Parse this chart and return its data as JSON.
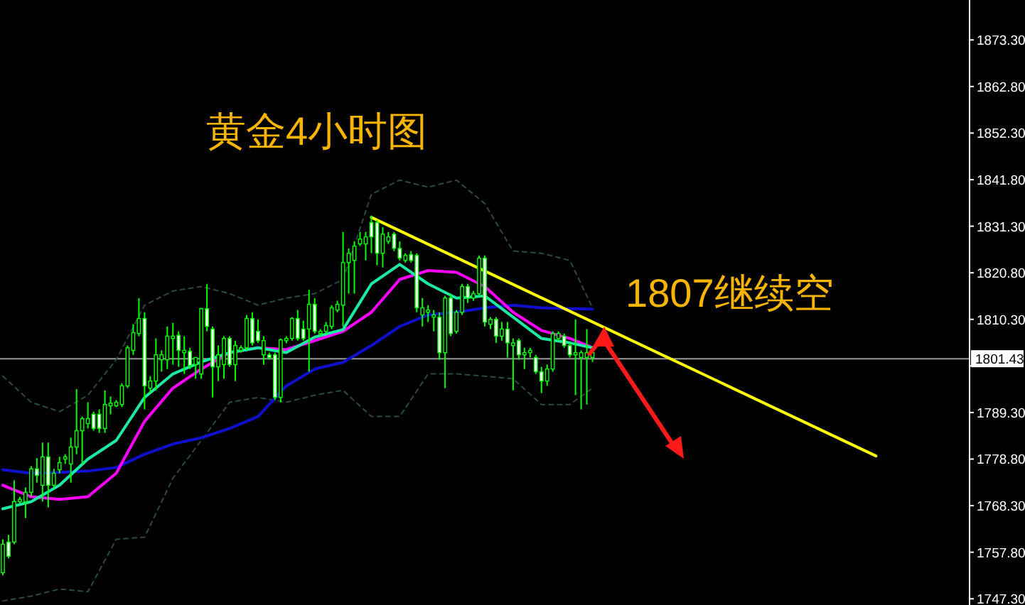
{
  "chart_data": {
    "type": "candlestick",
    "title": "黄金4小时图",
    "annotations": [
      "1807继续空"
    ],
    "categories": [
      null,
      null,
      null,
      null,
      null,
      null,
      null,
      null,
      null,
      null,
      null,
      null,
      null,
      null,
      null,
      null,
      null,
      null,
      null,
      null,
      null,
      null,
      null,
      null,
      null,
      null,
      null,
      null,
      null,
      null,
      null,
      null,
      null,
      null,
      null,
      null,
      null,
      null,
      null,
      null,
      null,
      null,
      null,
      null,
      null,
      null,
      null,
      null,
      null,
      null,
      null,
      null,
      null,
      null,
      null,
      null,
      null,
      null,
      null,
      null,
      null,
      null,
      null,
      null,
      null,
      null,
      null,
      null,
      null,
      null,
      null,
      null,
      null,
      null,
      null,
      null,
      null,
      null,
      null,
      null,
      null,
      null,
      null,
      null,
      null,
      null,
      null,
      null,
      null,
      null,
      null,
      null,
      null,
      null,
      null,
      null,
      null,
      null,
      null,
      null,
      null,
      null,
      null,
      null,
      null,
      null,
      null,
      null,
      null,
      null,
      null,
      null,
      null,
      null,
      null,
      null,
      null,
      null,
      null,
      null,
      null,
      null,
      null,
      null,
      null,
      null,
      null,
      null,
      null,
      null,
      null,
      null,
      null,
      null,
      null,
      null,
      null,
      null,
      null,
      null,
      null,
      null,
      null,
      null,
      null,
      null,
      null,
      null,
      null,
      null,
      null,
      null,
      null,
      null,
      null,
      null,
      null,
      null,
      null,
      null,
      null,
      null,
      null,
      null,
      null,
      null,
      null,
      null,
      null,
      null,
      null
    ],
    "ohlc": [
      [
        1753.2,
        1760.7,
        1752.6,
        1759.6
      ],
      [
        1760.1,
        1761.7,
        1756.4,
        1756.9
      ],
      [
        1760.1,
        1774.0,
        1759.6,
        1769.2
      ],
      [
        1769.2,
        1770.3,
        1768.7,
        1769.7
      ],
      [
        1769.2,
        1772.4,
        1765.5,
        1771.3
      ],
      [
        1771.3,
        1777.2,
        1770.3,
        1776.6
      ],
      [
        1776.6,
        1779.0,
        1773.5,
        1775.1
      ],
      [
        1772.9,
        1782.5,
        1769.2,
        1779.3
      ],
      [
        1779.3,
        1782.5,
        1767.9,
        1772.9
      ],
      [
        1772.9,
        1776.6,
        1772.4,
        1775.6
      ],
      [
        1776.4,
        1779.3,
        1775.6,
        1778.0
      ],
      [
        1778.8,
        1779.9,
        1777.7,
        1779.3
      ],
      [
        1777.7,
        1783.6,
        1773.5,
        1781.5
      ],
      [
        1781.5,
        1794.6,
        1779.9,
        1785.2
      ],
      [
        1785.2,
        1788.4,
        1777.7,
        1787.9
      ],
      [
        1786.8,
        1791.6,
        1785.7,
        1787.9
      ],
      [
        1788.9,
        1789.5,
        1785.2,
        1785.7
      ],
      [
        1788.9,
        1790.0,
        1784.7,
        1785.7
      ],
      [
        1785.7,
        1794.3,
        1784.7,
        1791.1
      ],
      [
        1790.8,
        1792.9,
        1788.9,
        1791.4
      ],
      [
        1790.8,
        1792.1,
        1790.5,
        1791.6
      ],
      [
        1791.1,
        1795.9,
        1790.5,
        1795.3
      ],
      [
        1795.3,
        1804.4,
        1794.8,
        1803.9
      ],
      [
        1803.3,
        1809.2,
        1802.3,
        1807.3
      ],
      [
        1807.1,
        1815.1,
        1806.5,
        1810.5
      ],
      [
        1810.5,
        1811.9,
        1790.0,
        1795.3
      ],
      [
        1794.8,
        1797.5,
        1793.7,
        1796.4
      ],
      [
        1796.4,
        1806.0,
        1794.3,
        1802.3
      ],
      [
        1801.2,
        1803.3,
        1798.5,
        1802.3
      ],
      [
        1801.2,
        1808.7,
        1799.1,
        1806.5
      ],
      [
        1806.0,
        1809.5,
        1800.1,
        1806.5
      ],
      [
        1806.7,
        1807.6,
        1799.6,
        1803.3
      ],
      [
        1802.8,
        1806.5,
        1798.0,
        1803.3
      ],
      [
        1803.1,
        1803.9,
        1799.1,
        1799.9
      ],
      [
        1800.1,
        1801.7,
        1796.9,
        1801.7
      ],
      [
        1798.0,
        1812.9,
        1796.9,
        1812.7
      ],
      [
        1812.7,
        1818.3,
        1807.6,
        1808.7
      ],
      [
        1808.1,
        1808.7,
        1792.7,
        1799.6
      ],
      [
        1799.6,
        1804.4,
        1796.4,
        1802.3
      ],
      [
        1800.1,
        1806.5,
        1796.9,
        1806.0
      ],
      [
        1806.0,
        1806.5,
        1799.6,
        1800.1
      ],
      [
        1800.1,
        1805.5,
        1796.4,
        1804.4
      ],
      [
        1803.3,
        1804.4,
        1802.8,
        1803.9
      ],
      [
        1803.9,
        1811.3,
        1803.3,
        1810.5
      ],
      [
        1810.5,
        1811.9,
        1804.4,
        1805.0
      ],
      [
        1807.6,
        1810.3,
        1805.0,
        1805.5
      ],
      [
        1802.3,
        1806.5,
        1800.1,
        1805.5
      ],
      [
        1802.3,
        1802.8,
        1801.2,
        1801.7
      ],
      [
        1802.3,
        1802.8,
        1792.1,
        1792.7
      ],
      [
        1792.7,
        1806.0,
        1791.6,
        1805.7
      ],
      [
        1805.5,
        1806.5,
        1804.9,
        1806.0
      ],
      [
        1806.0,
        1810.8,
        1805.5,
        1810.5
      ],
      [
        1810.5,
        1812.4,
        1805.5,
        1806.0
      ],
      [
        1808.1,
        1810.0,
        1805.5,
        1806.0
      ],
      [
        1808.1,
        1817.0,
        1798.5,
        1813.7
      ],
      [
        1813.7,
        1815.1,
        1807.1,
        1807.6
      ],
      [
        1807.1,
        1808.1,
        1806.5,
        1807.6
      ],
      [
        1807.6,
        1809.7,
        1807.1,
        1808.9
      ],
      [
        1808.7,
        1813.5,
        1808.1,
        1812.9
      ],
      [
        1812.4,
        1814.5,
        1811.9,
        1813.7
      ],
      [
        1813.5,
        1830.0,
        1808.7,
        1823.1
      ],
      [
        1823.1,
        1826.3,
        1816.1,
        1825.2
      ],
      [
        1823.6,
        1827.9,
        1816.1,
        1826.8
      ],
      [
        1827.3,
        1830.0,
        1826.8,
        1828.4
      ],
      [
        1827.3,
        1830.0,
        1823.6,
        1828.9
      ],
      [
        1832.1,
        1833.7,
        1825.2,
        1828.9
      ],
      [
        1832.1,
        1832.7,
        1822.5,
        1825.2
      ],
      [
        1825.2,
        1831.1,
        1822.0,
        1829.5
      ],
      [
        1827.9,
        1830.0,
        1827.3,
        1828.9
      ],
      [
        1829.5,
        1830.0,
        1825.7,
        1826.3
      ],
      [
        1826.3,
        1827.9,
        1823.6,
        1824.1
      ],
      [
        1823.6,
        1825.2,
        1823.1,
        1824.7
      ],
      [
        1824.9,
        1825.7,
        1823.1,
        1823.6
      ],
      [
        1824.7,
        1825.2,
        1811.9,
        1812.9
      ],
      [
        1811.3,
        1815.1,
        1808.7,
        1812.9
      ],
      [
        1811.9,
        1813.5,
        1809.7,
        1812.4
      ],
      [
        1810.8,
        1812.4,
        1807.6,
        1811.3
      ],
      [
        1810.8,
        1811.9,
        1801.2,
        1802.8
      ],
      [
        1802.8,
        1815.6,
        1794.8,
        1815.1
      ],
      [
        1815.1,
        1816.1,
        1806.5,
        1807.1
      ],
      [
        1807.6,
        1812.4,
        1807.1,
        1811.9
      ],
      [
        1811.9,
        1818.3,
        1811.3,
        1817.7
      ],
      [
        1817.7,
        1818.3,
        1814.0,
        1815.1
      ],
      [
        1815.1,
        1816.7,
        1814.5,
        1816.1
      ],
      [
        1816.1,
        1824.7,
        1815.6,
        1824.1
      ],
      [
        1824.1,
        1824.7,
        1808.7,
        1809.7
      ],
      [
        1809.2,
        1810.8,
        1808.1,
        1810.3
      ],
      [
        1810.3,
        1810.8,
        1805.0,
        1806.5
      ],
      [
        1806.5,
        1809.7,
        1805.5,
        1808.1
      ],
      [
        1808.1,
        1809.7,
        1801.7,
        1805.0
      ],
      [
        1804.4,
        1806.0,
        1794.3,
        1805.0
      ],
      [
        1805.5,
        1806.0,
        1801.2,
        1802.3
      ],
      [
        1802.3,
        1803.9,
        1799.1,
        1802.8
      ],
      [
        1802.8,
        1803.9,
        1801.7,
        1803.3
      ],
      [
        1801.7,
        1802.3,
        1798.0,
        1798.5
      ],
      [
        1798.5,
        1799.6,
        1793.7,
        1796.4
      ],
      [
        1796.4,
        1800.1,
        1795.3,
        1799.1
      ],
      [
        1799.1,
        1807.6,
        1798.5,
        1807.1
      ],
      [
        1806.0,
        1807.6,
        1805.5,
        1807.1
      ],
      [
        1806.5,
        1807.1,
        1803.9,
        1804.4
      ],
      [
        1804.4,
        1805.0,
        1801.7,
        1802.3
      ],
      [
        1802.3,
        1810.3,
        1793.2,
        1802.8
      ],
      [
        1801.7,
        1803.3,
        1790.0,
        1802.8
      ],
      [
        1801.7,
        1808.1,
        1791.1,
        1802.8
      ],
      [
        1801.7,
        1803.9,
        1800.7,
        1802.8
      ],
      null,
      null,
      null,
      null,
      null,
      null,
      null,
      null,
      null,
      null,
      null,
      null,
      null,
      null,
      null,
      null,
      null,
      null,
      null,
      null,
      null,
      null,
      null,
      null,
      null,
      null,
      null,
      null,
      null,
      null,
      null,
      null,
      null,
      null,
      null,
      null,
      null,
      null,
      null,
      null,
      null,
      null,
      null,
      null,
      null,
      null,
      null,
      null,
      null,
      null,
      null,
      null,
      null,
      null,
      null,
      null,
      null,
      null,
      null,
      null,
      null,
      null,
      null,
      null,
      null,
      null
    ],
    "series": [
      {
        "type": "line",
        "color": "#2a4a44",
        "line_style": "dashed",
        "values": [
          1797.5,
          null,
          null,
          null,
          null,
          1791.6,
          null,
          null,
          null,
          null,
          1789.5,
          null,
          null,
          null,
          null,
          1793.2,
          null,
          null,
          null,
          null,
          1801.2,
          null,
          null,
          null,
          null,
          1813.5,
          null,
          null,
          null,
          null,
          1816.7,
          null,
          null,
          null,
          null,
          1817.7,
          null,
          null,
          null,
          null,
          1816.1,
          null,
          null,
          null,
          null,
          1813.5,
          null,
          null,
          null,
          null,
          1815.1,
          null,
          null,
          null,
          null,
          1816.1,
          null,
          null,
          null,
          null,
          1819.3,
          null,
          null,
          null,
          null,
          1838.5,
          null,
          null,
          null,
          null,
          1841.7,
          null,
          null,
          null,
          null,
          1840.1,
          null,
          null,
          null,
          null,
          1841.7,
          null,
          null,
          null,
          null,
          1836.4,
          null,
          null,
          null,
          null,
          1825.7,
          null,
          null,
          null,
          null,
          1825.2,
          null,
          null,
          null,
          null,
          1823.6,
          null,
          null,
          null,
          1812.9,
          null,
          null,
          null,
          null,
          null,
          null,
          null,
          null,
          null,
          null,
          null,
          null,
          null,
          null,
          null,
          null,
          null,
          null,
          null,
          null,
          null,
          null,
          null,
          null,
          null,
          null,
          null,
          null,
          null,
          null,
          null,
          null,
          null,
          null,
          null,
          null,
          null,
          null,
          null,
          null,
          null,
          null,
          null,
          null,
          null,
          null,
          null,
          null,
          null,
          null,
          null,
          null,
          null,
          null,
          null,
          null,
          null,
          null,
          null,
          null,
          null,
          null,
          null,
          null,
          null,
          null
        ]
      },
      {
        "type": "line",
        "color": "#2a4a44",
        "line_style": "dashed",
        "values": [
          1746.8,
          null,
          null,
          null,
          null,
          1747.9,
          null,
          null,
          null,
          null,
          1749.5,
          null,
          null,
          null,
          null,
          1748.9,
          null,
          null,
          null,
          null,
          1760.7,
          null,
          null,
          null,
          null,
          1761.2,
          null,
          null,
          null,
          null,
          1774.5,
          null,
          null,
          null,
          null,
          1783.0,
          null,
          null,
          null,
          null,
          1791.6,
          null,
          null,
          null,
          null,
          1792.7,
          null,
          null,
          null,
          null,
          1791.6,
          null,
          null,
          null,
          null,
          1793.2,
          null,
          null,
          null,
          null,
          1794.3,
          null,
          null,
          null,
          null,
          1788.4,
          null,
          null,
          null,
          null,
          1788.4,
          null,
          null,
          null,
          null,
          1798.0,
          null,
          null,
          null,
          null,
          1798.0,
          null,
          null,
          null,
          null,
          1797.5,
          null,
          null,
          null,
          null,
          1796.9,
          null,
          null,
          null,
          null,
          1791.1,
          null,
          null,
          null,
          null,
          1791.1,
          null,
          null,
          null,
          1794.8,
          null,
          null,
          null,
          null,
          null,
          null,
          null,
          null,
          null,
          null,
          null,
          null,
          null,
          null,
          null,
          null,
          null,
          null,
          null,
          null,
          null,
          null,
          null,
          null,
          null,
          null,
          null,
          null,
          null,
          null,
          null,
          null,
          null,
          null,
          null,
          null,
          null,
          null,
          null,
          null,
          null,
          null,
          null,
          null,
          null,
          null,
          null,
          null,
          null,
          null,
          null,
          null,
          null,
          null,
          null,
          null,
          null,
          null,
          null,
          null,
          null,
          null,
          null,
          null,
          null,
          null
        ]
      },
      {
        "type": "line",
        "color": "#1010cc",
        "values": [
          1776.4,
          null,
          null,
          null,
          null,
          1775.6,
          null,
          null,
          null,
          null,
          1775.8,
          null,
          null,
          null,
          null,
          1776.1,
          null,
          null,
          null,
          null,
          1776.9,
          null,
          null,
          null,
          null,
          1779.9,
          null,
          null,
          null,
          null,
          1782.2,
          null,
          null,
          null,
          null,
          1783.6,
          null,
          null,
          null,
          null,
          1785.7,
          null,
          null,
          null,
          null,
          1788.4,
          null,
          null,
          null,
          null,
          1795.3,
          null,
          null,
          null,
          null,
          1799.1,
          null,
          null,
          null,
          null,
          1800.6,
          null,
          null,
          null,
          null,
          1804.4,
          null,
          null,
          null,
          null,
          1808.7,
          null,
          null,
          null,
          null,
          1811.3,
          null,
          null,
          null,
          null,
          1811.9,
          null,
          null,
          null,
          null,
          1812.9,
          null,
          null,
          null,
          null,
          1813.5,
          null,
          null,
          null,
          null,
          1812.9,
          null,
          null,
          null,
          null,
          1812.7,
          null,
          null,
          null,
          1812.6,
          null,
          null,
          null,
          null,
          null,
          null,
          null,
          null,
          null,
          null,
          null,
          null,
          null,
          null,
          null,
          null,
          null,
          null,
          null,
          null,
          null,
          null,
          null,
          null,
          null,
          null,
          null,
          null,
          null,
          null,
          null,
          null,
          null,
          null,
          null,
          null,
          null,
          null,
          null,
          null,
          null,
          null,
          null,
          null,
          null,
          null,
          null,
          null,
          null,
          null,
          null,
          null,
          null,
          null,
          null,
          null,
          null,
          null,
          null,
          null,
          null,
          null,
          null,
          null,
          null,
          null
        ]
      },
      {
        "type": "line",
        "color": "#ff00ff",
        "values": [
          1772.9,
          null,
          null,
          null,
          null,
          1770.3,
          null,
          null,
          null,
          null,
          1769.7,
          null,
          null,
          null,
          null,
          1770.3,
          null,
          null,
          null,
          null,
          1775.6,
          null,
          null,
          null,
          null,
          1787.3,
          null,
          null,
          null,
          null,
          1794.8,
          null,
          null,
          null,
          null,
          1799.1,
          null,
          null,
          null,
          null,
          1802.8,
          null,
          null,
          null,
          null,
          1803.9,
          null,
          null,
          null,
          null,
          1803.5,
          null,
          null,
          null,
          null,
          1805.5,
          null,
          null,
          null,
          null,
          1807.6,
          null,
          null,
          null,
          null,
          1811.9,
          null,
          null,
          null,
          null,
          1819.3,
          null,
          null,
          null,
          null,
          1821.3,
          null,
          null,
          null,
          null,
          1820.9,
          null,
          null,
          null,
          null,
          1817.7,
          null,
          null,
          null,
          null,
          1811.9,
          null,
          null,
          null,
          null,
          1807.8,
          null,
          null,
          null,
          null,
          1806.0,
          null,
          null,
          null,
          1803.9,
          null,
          null,
          null,
          null,
          null,
          null,
          null,
          null,
          null,
          null,
          null,
          null,
          null,
          null,
          null,
          null,
          null,
          null,
          null,
          null,
          null,
          null,
          null,
          null,
          null,
          null,
          null,
          null,
          null,
          null,
          null,
          null,
          null,
          null,
          null,
          null,
          null,
          null,
          null,
          null,
          null,
          null,
          null,
          null,
          null,
          null,
          null,
          null,
          null,
          null,
          null,
          null,
          null,
          null,
          null,
          null,
          null,
          null,
          null,
          null,
          null,
          null,
          null,
          null,
          null,
          null
        ]
      },
      {
        "type": "line",
        "color": "#1de9a6",
        "values": [
          1767.6,
          null,
          null,
          null,
          null,
          1769.2,
          null,
          null,
          null,
          null,
          1772.9,
          null,
          null,
          null,
          null,
          1778.8,
          null,
          null,
          null,
          null,
          1783.0,
          null,
          null,
          null,
          null,
          1792.7,
          null,
          null,
          null,
          null,
          1798.0,
          null,
          null,
          null,
          null,
          1800.7,
          null,
          null,
          null,
          null,
          1802.8,
          null,
          null,
          null,
          null,
          1803.9,
          null,
          null,
          null,
          null,
          1802.8,
          null,
          null,
          null,
          null,
          1806.3,
          null,
          null,
          null,
          null,
          1808.0,
          null,
          null,
          null,
          null,
          1818.3,
          null,
          null,
          null,
          null,
          1822.7,
          null,
          null,
          null,
          null,
          1818.3,
          null,
          null,
          null,
          null,
          1815.1,
          null,
          null,
          null,
          null,
          1815.6,
          null,
          null,
          null,
          null,
          1810.8,
          null,
          null,
          null,
          null,
          1806.0,
          null,
          null,
          null,
          null,
          1805.0,
          null,
          null,
          null,
          1803.9,
          null,
          null,
          null,
          null,
          null,
          null,
          null,
          null,
          null,
          null,
          null,
          null,
          null,
          null,
          null,
          null,
          null,
          null,
          null,
          null,
          null,
          null,
          null,
          null,
          null,
          null,
          null,
          null,
          null,
          null,
          null,
          null,
          null,
          null,
          null,
          null,
          null,
          null,
          null,
          null,
          null,
          null,
          null,
          null,
          null,
          null,
          null,
          null,
          null,
          null,
          null,
          null,
          null,
          null,
          null,
          null,
          null,
          null,
          null,
          null,
          null,
          null,
          null,
          null,
          null,
          null
        ]
      },
      {
        "type": "line",
        "color": "#ffff00",
        "values": [
          null,
          null,
          null,
          null,
          null,
          null,
          null,
          null,
          null,
          null,
          null,
          null,
          null,
          null,
          null,
          null,
          null,
          null,
          null,
          null,
          null,
          null,
          null,
          null,
          null,
          null,
          null,
          null,
          null,
          null,
          null,
          null,
          null,
          null,
          null,
          null,
          null,
          null,
          null,
          null,
          null,
          null,
          null,
          null,
          null,
          null,
          null,
          null,
          null,
          null,
          null,
          null,
          null,
          null,
          null,
          null,
          null,
          null,
          null,
          null,
          null,
          null,
          null,
          null,
          null,
          1833.3,
          null,
          null,
          null,
          null,
          null,
          null,
          null,
          null,
          null,
          null,
          null,
          null,
          null,
          null,
          null,
          null,
          null,
          null,
          null,
          null,
          null,
          null,
          null,
          null,
          null,
          null,
          null,
          null,
          null,
          null,
          null,
          null,
          null,
          null,
          null,
          null,
          null,
          null,
          null,
          null,
          null,
          null,
          null,
          null,
          null,
          null,
          null,
          null,
          null,
          null,
          null,
          null,
          null,
          null,
          null,
          null,
          null,
          null,
          null,
          null,
          null,
          null,
          null,
          null,
          null,
          null,
          null,
          null,
          null,
          null,
          null,
          null,
          null,
          null,
          null,
          null,
          null,
          null,
          null,
          null,
          null,
          null,
          null,
          null,
          null,
          null,
          null,
          null,
          1779.5,
          null,
          null,
          null,
          null,
          null,
          null,
          null,
          null,
          null,
          null,
          null,
          null,
          null,
          null,
          null,
          null
        ]
      }
    ],
    "ref_lines": [
      {
        "axis": "y",
        "value": 1801.43,
        "label": "1801.43",
        "color": "#9a9a9a"
      }
    ],
    "ylim": [
      1745.9,
      1882.3
    ],
    "yticks": [
      {
        "value": 1873.3,
        "label": "1873.30"
      },
      {
        "value": 1862.8,
        "label": "1862.80"
      },
      {
        "value": 1852.3,
        "label": "1852.30"
      },
      {
        "value": 1841.8,
        "label": "1841.80"
      },
      {
        "value": 1831.3,
        "label": "1831.30"
      },
      {
        "value": 1820.8,
        "label": "1820.80"
      },
      {
        "value": 1810.3,
        "label": "1810.30"
      },
      {
        "value": 1799.8,
        "label": null
      },
      {
        "value": 1789.3,
        "label": "1789.30"
      },
      {
        "value": 1778.8,
        "label": "1778.80"
      },
      {
        "value": 1768.3,
        "label": "1768.30"
      },
      {
        "value": 1757.8,
        "label": "1757.80"
      },
      {
        "value": 1747.3,
        "label": "1747.30"
      }
    ],
    "tick_labels": "y"
  }
}
